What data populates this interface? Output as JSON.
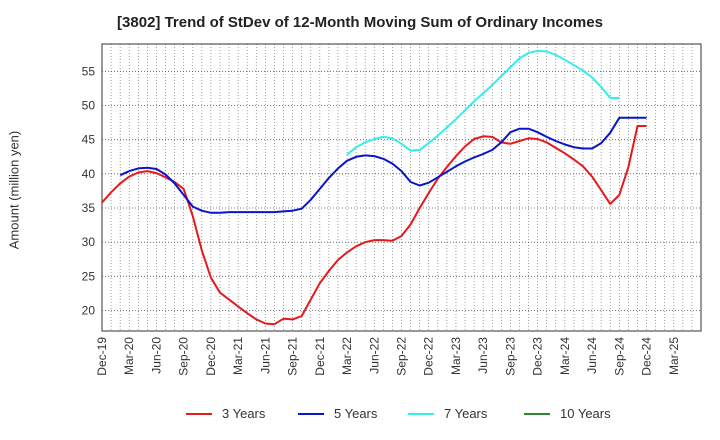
{
  "chart_data": {
    "type": "line",
    "title": "[3802]  Trend of StDev of 12-Month Moving Sum of Ordinary Incomes",
    "xlabel": "",
    "ylabel": "Amount (million yen)",
    "ylim": [
      17,
      59
    ],
    "yticks": [
      20,
      25,
      30,
      35,
      40,
      45,
      50,
      55
    ],
    "xlim": [
      0,
      66
    ],
    "x_tick_labels": [
      "Dec-19",
      "Mar-20",
      "Jun-20",
      "Sep-20",
      "Dec-20",
      "Mar-21",
      "Jun-21",
      "Sep-21",
      "Dec-21",
      "Mar-22",
      "Jun-22",
      "Sep-22",
      "Dec-22",
      "Mar-23",
      "Jun-23",
      "Sep-23",
      "Dec-23",
      "Mar-24",
      "Jun-24",
      "Sep-24",
      "Dec-24",
      "Mar-25"
    ],
    "x_index_note": "x = months since Dec-19",
    "series": [
      {
        "name": "3 Years",
        "color": "#e41a1c",
        "x": [
          0,
          1,
          2,
          3,
          4,
          5,
          6,
          7,
          8,
          9,
          10,
          11,
          12,
          13,
          14,
          15,
          16,
          17,
          18,
          19,
          20,
          21,
          22,
          23,
          24,
          25,
          26,
          27,
          28,
          29,
          30,
          31,
          32,
          33,
          34,
          35,
          36,
          37,
          38,
          39,
          40,
          41,
          42,
          43,
          44,
          45,
          46,
          47,
          48,
          49,
          50,
          51,
          52,
          53,
          54,
          55,
          56,
          57,
          58,
          59,
          60
        ],
        "values": [
          35.8,
          37.3,
          38.6,
          39.6,
          40.2,
          40.4,
          40.1,
          39.5,
          38.8,
          37.8,
          33.8,
          28.8,
          24.8,
          22.6,
          21.6,
          20.6,
          19.6,
          18.7,
          18.1,
          18.0,
          18.8,
          18.7,
          19.2,
          21.6,
          24.0,
          25.8,
          27.4,
          28.5,
          29.4,
          30.0,
          30.3,
          30.3,
          30.2,
          30.9,
          32.6,
          35.0,
          37.2,
          39.3,
          41.0,
          42.6,
          44.0,
          45.1,
          45.5,
          45.4,
          44.6,
          44.4,
          44.8,
          45.2,
          45.1,
          44.6,
          43.8,
          43.0,
          42.1,
          41.1,
          39.6,
          37.6,
          35.6,
          36.9,
          41.0,
          47.0,
          47.0
        ],
        "x_last": 60
      },
      {
        "name": "5 Years",
        "color": "#0a14c8",
        "x": [
          2,
          3,
          4,
          5,
          6,
          7,
          8,
          9,
          10,
          11,
          12,
          13,
          14,
          15,
          16,
          17,
          18,
          19,
          20,
          21,
          22,
          23,
          24,
          25,
          26,
          27,
          28,
          29,
          30,
          31,
          32,
          33,
          34,
          35,
          36,
          37,
          38,
          39,
          40,
          41,
          42,
          43,
          44,
          45,
          46,
          47,
          48,
          49,
          50,
          51,
          52,
          53,
          54,
          55,
          56,
          57,
          58,
          59,
          60
        ],
        "values": [
          39.8,
          40.4,
          40.8,
          40.9,
          40.7,
          39.9,
          38.6,
          36.9,
          35.2,
          34.6,
          34.3,
          34.3,
          34.4,
          34.4,
          34.4,
          34.4,
          34.4,
          34.4,
          34.5,
          34.6,
          34.9,
          36.2,
          37.8,
          39.4,
          40.8,
          41.9,
          42.5,
          42.7,
          42.6,
          42.2,
          41.5,
          40.4,
          38.8,
          38.3,
          38.7,
          39.5,
          40.3,
          41.1,
          41.8,
          42.4,
          42.9,
          43.5,
          44.6,
          46.1,
          46.6,
          46.6,
          46.1,
          45.4,
          44.8,
          44.3,
          43.9,
          43.7,
          43.7,
          44.5,
          46.0,
          48.2,
          48.2,
          48.2,
          48.2
        ]
      },
      {
        "name": "7 Years",
        "color": "#33eeee",
        "x": [
          27,
          28,
          29,
          30,
          31,
          32,
          33,
          34,
          35,
          36,
          37,
          38,
          39,
          40,
          41,
          42,
          43,
          44,
          45,
          46,
          47,
          48,
          49,
          50,
          51,
          52,
          53,
          54,
          55,
          56,
          57
        ],
        "values": [
          42.8,
          43.9,
          44.6,
          45.1,
          45.4,
          45.2,
          44.4,
          43.4,
          43.5,
          44.5,
          45.6,
          46.8,
          48.0,
          49.3,
          50.6,
          51.8,
          53.0,
          54.3,
          55.6,
          56.9,
          57.7,
          58.0,
          57.9,
          57.4,
          56.7,
          55.9,
          55.1,
          54.1,
          52.7,
          51.1,
          51.1
        ]
      },
      {
        "name": "10 Years",
        "color": "#2a8a2a",
        "x": [],
        "values": []
      }
    ]
  },
  "legend": [
    {
      "label": "3 Years",
      "color": "#e41a1c"
    },
    {
      "label": "5 Years",
      "color": "#0a14c8"
    },
    {
      "label": "7 Years",
      "color": "#33eeee"
    },
    {
      "label": "10 Years",
      "color": "#2a8a2a"
    }
  ]
}
